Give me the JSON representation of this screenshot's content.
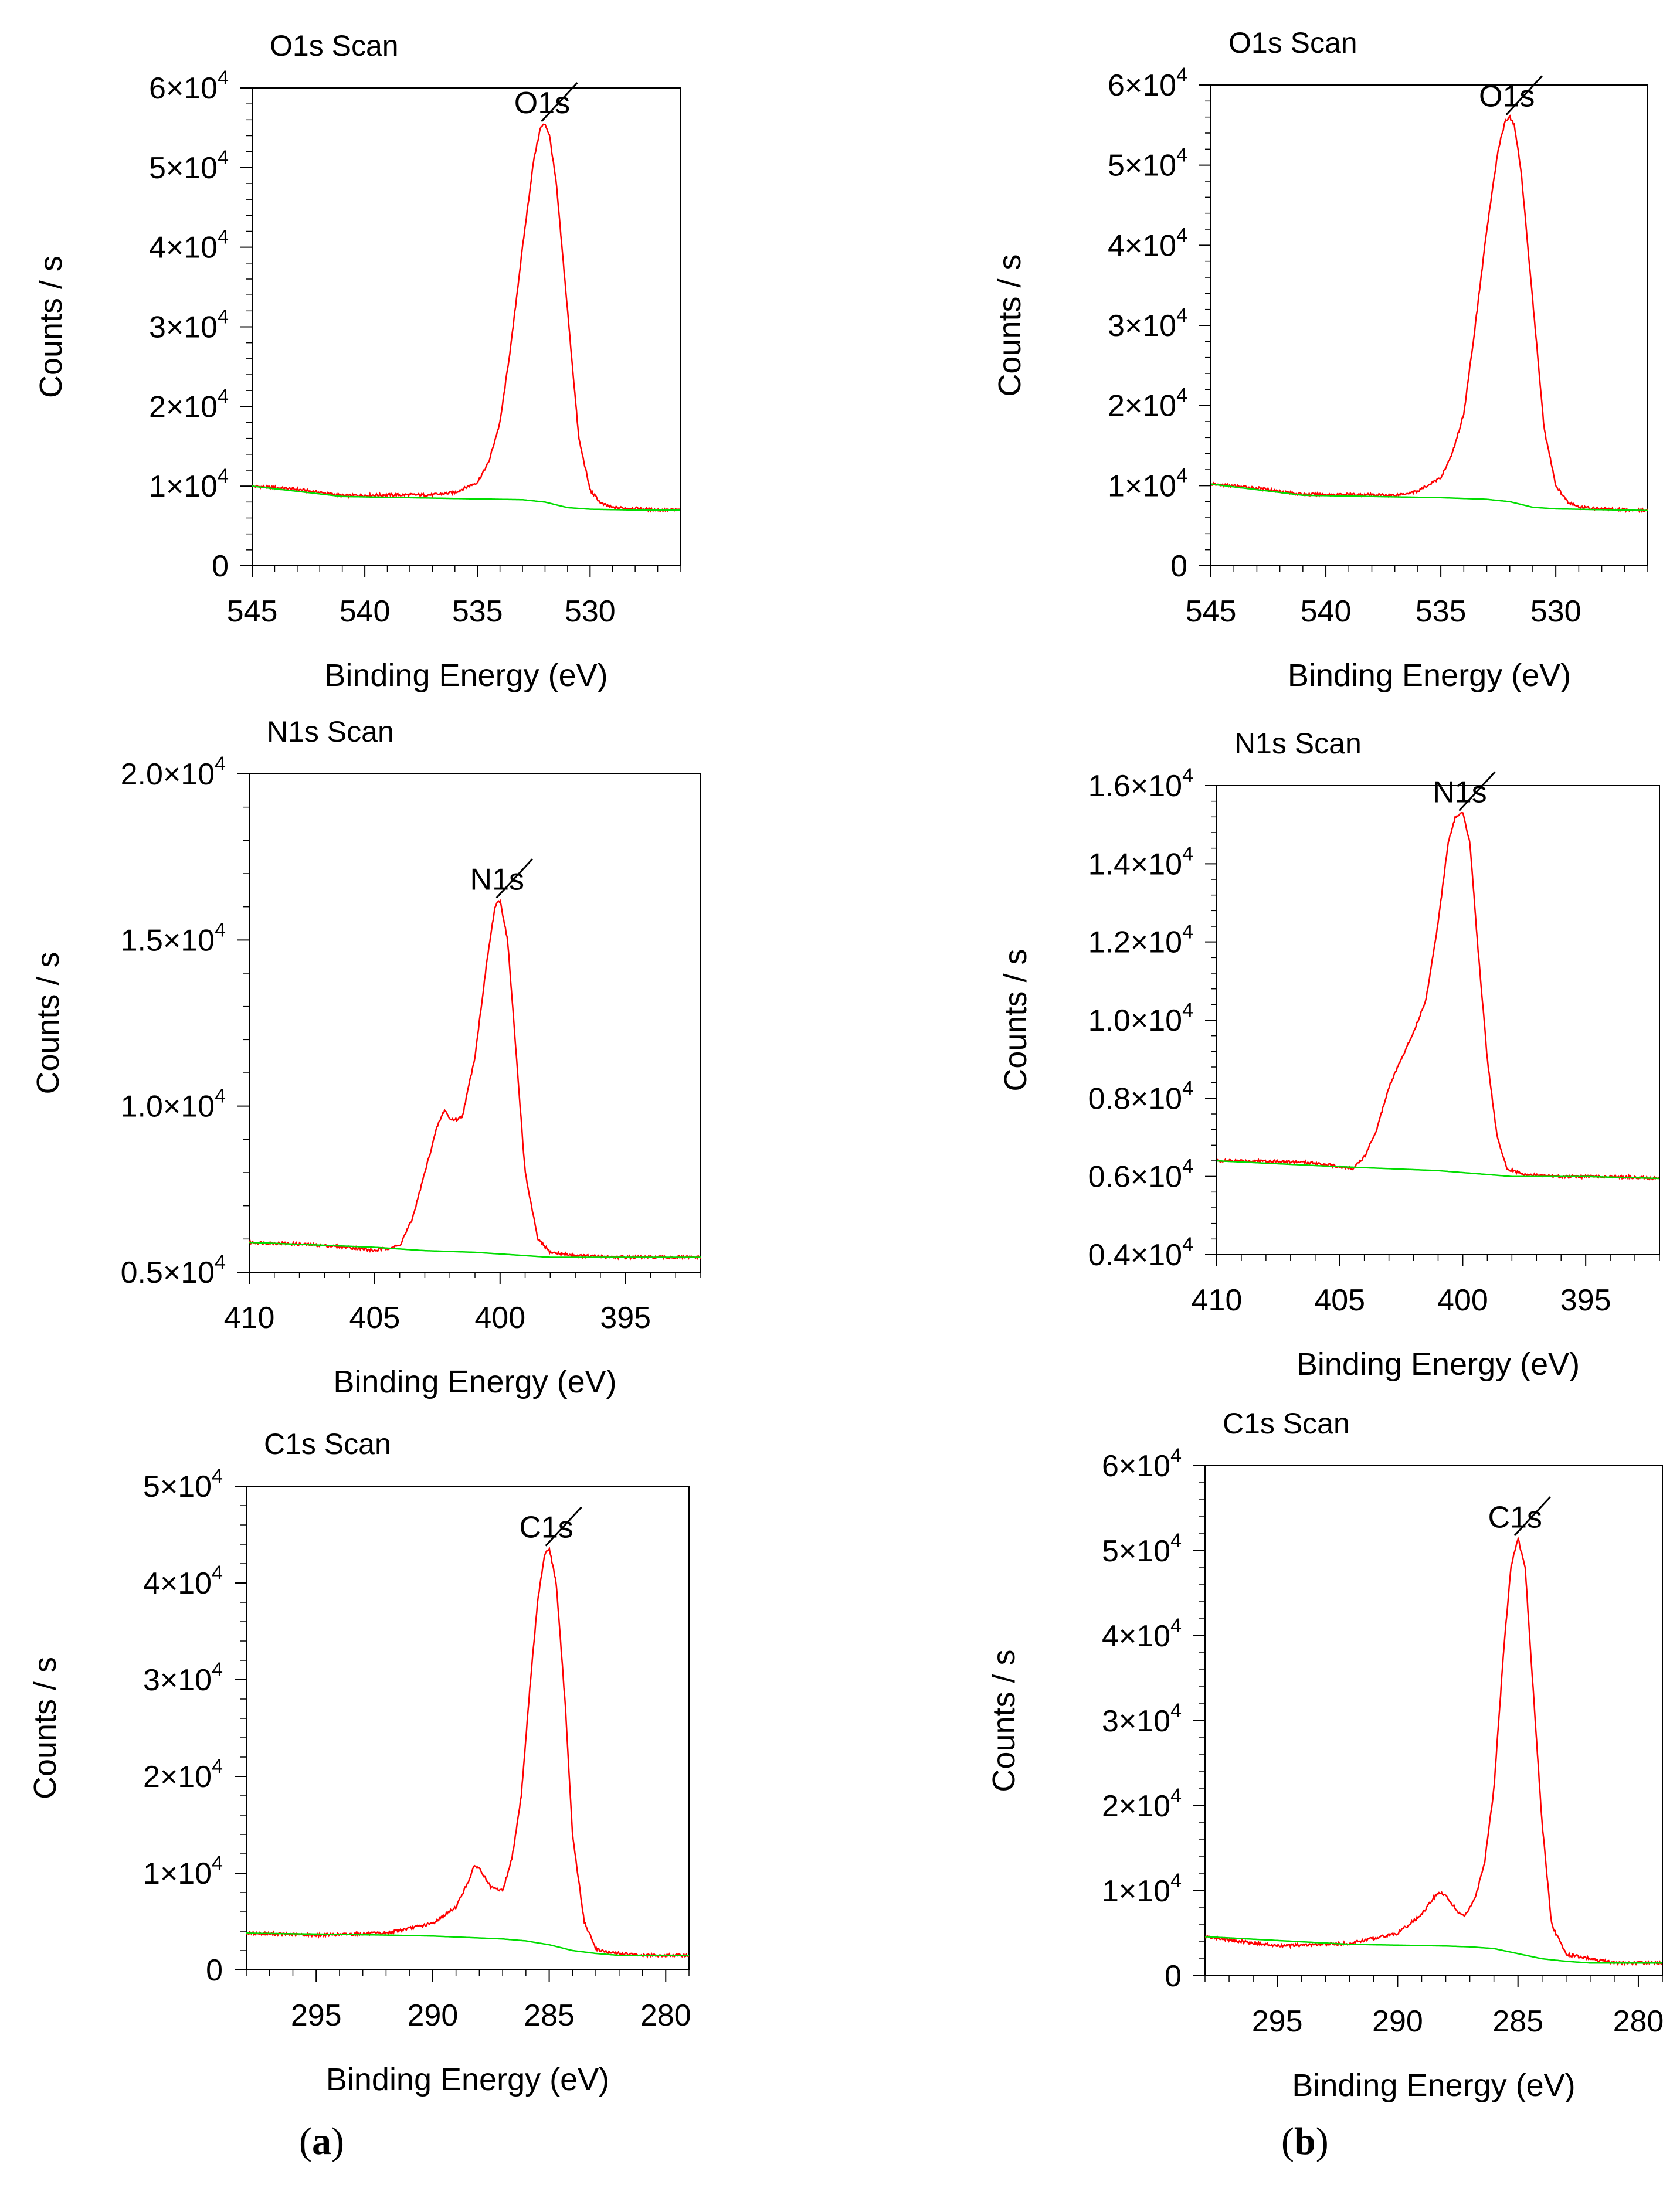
{
  "colors": {
    "spectrum": "#ff0000",
    "background_line": "#00dd00",
    "axis": "#000000"
  },
  "panel_labels": {
    "a": "a",
    "b": "b"
  },
  "chart_data": [
    {
      "type": "line",
      "id": "a-o1s",
      "panel": "a",
      "title": "O1s Scan",
      "xlabel": "Binding Energy (eV)",
      "ylabel": "Counts / s",
      "xlim": [
        545,
        526
      ],
      "ylim": [
        0,
        60000
      ],
      "xticks": [
        545,
        540,
        535,
        530
      ],
      "yticks": [
        {
          "v": 0,
          "m": "0",
          "e": ""
        },
        {
          "v": 10000,
          "m": "1×10",
          "e": "4"
        },
        {
          "v": 20000,
          "m": "2×10",
          "e": "4"
        },
        {
          "v": 30000,
          "m": "3×10",
          "e": "4"
        },
        {
          "v": 40000,
          "m": "4×10",
          "e": "4"
        },
        {
          "v": 50000,
          "m": "5×10",
          "e": "4"
        },
        {
          "v": 60000,
          "m": "6×10",
          "e": "4"
        }
      ],
      "peak_label": "O1s",
      "peak_x": 532.0,
      "series": [
        {
          "name": "spectrum",
          "x": [
            545,
            543,
            541,
            539,
            537,
            536,
            535,
            534.5,
            534,
            533.5,
            533,
            532.5,
            532.2,
            532,
            531.8,
            531.5,
            531,
            530.5,
            530,
            529.5,
            529,
            528,
            527,
            526
          ],
          "y": [
            10000,
            9600,
            8800,
            8900,
            8900,
            9200,
            10500,
            13000,
            18000,
            28000,
            40000,
            51000,
            55000,
            55500,
            54000,
            48000,
            32000,
            16000,
            9500,
            7800,
            7300,
            7200,
            7000,
            7000
          ]
        },
        {
          "name": "background",
          "x": [
            545,
            541,
            537,
            535,
            533,
            532,
            531,
            530,
            528,
            526
          ],
          "y": [
            10000,
            8700,
            8500,
            8400,
            8300,
            8000,
            7300,
            7100,
            7000,
            7000
          ]
        }
      ]
    },
    {
      "type": "line",
      "id": "a-n1s",
      "panel": "a",
      "title": "N1s Scan",
      "xlabel": "Binding Energy (eV)",
      "ylabel": "Counts / s",
      "xlim": [
        410,
        392
      ],
      "ylim": [
        5000,
        20000
      ],
      "xticks": [
        410,
        405,
        400,
        395
      ],
      "yticks": [
        {
          "v": 5000,
          "m": "0.5×10",
          "e": "4"
        },
        {
          "v": 10000,
          "m": "1.0×10",
          "e": "4"
        },
        {
          "v": 15000,
          "m": "1.5×10",
          "e": "4"
        },
        {
          "v": 20000,
          "m": "2.0×10",
          "e": "4"
        }
      ],
      "peak_label": "N1s",
      "peak_x": 400.0,
      "series": [
        {
          "name": "spectrum",
          "x": [
            410,
            408,
            406,
            405,
            404,
            403.5,
            403,
            402.5,
            402.2,
            402,
            401.7,
            401.5,
            401,
            400.5,
            400.2,
            400,
            399.7,
            399.3,
            399,
            398.5,
            398,
            397,
            395,
            392
          ],
          "y": [
            5900,
            5850,
            5750,
            5650,
            5800,
            6600,
            8000,
            9400,
            9900,
            9600,
            9600,
            9700,
            11500,
            14500,
            16000,
            16200,
            15000,
            11000,
            8000,
            6000,
            5600,
            5500,
            5450,
            5450
          ]
        },
        {
          "name": "background",
          "x": [
            410,
            405,
            403,
            401,
            399,
            398,
            395,
            392
          ],
          "y": [
            5900,
            5750,
            5650,
            5600,
            5500,
            5450,
            5450,
            5450
          ]
        }
      ]
    },
    {
      "type": "line",
      "id": "a-c1s",
      "panel": "a",
      "title": "C1s Scan",
      "xlabel": "Binding Energy (eV)",
      "ylabel": "Counts / s",
      "xlim": [
        298,
        279
      ],
      "ylim": [
        0,
        50000
      ],
      "xticks": [
        295,
        290,
        285,
        280
      ],
      "yticks": [
        {
          "v": 0,
          "m": "0",
          "e": ""
        },
        {
          "v": 10000,
          "m": "1×10",
          "e": "4"
        },
        {
          "v": 20000,
          "m": "2×10",
          "e": "4"
        },
        {
          "v": 30000,
          "m": "3×10",
          "e": "4"
        },
        {
          "v": 40000,
          "m": "4×10",
          "e": "4"
        },
        {
          "v": 50000,
          "m": "5×10",
          "e": "4"
        }
      ],
      "peak_label": "C1s",
      "peak_x": 285.0,
      "series": [
        {
          "name": "spectrum",
          "x": [
            298,
            295,
            292,
            290,
            289,
            288.5,
            288.2,
            288,
            287.5,
            287,
            286.6,
            286.2,
            285.8,
            285.5,
            285.2,
            285,
            284.7,
            284.3,
            284,
            283.5,
            283,
            282.5,
            281,
            279
          ],
          "y": [
            3800,
            3600,
            3800,
            4800,
            6500,
            9000,
            10800,
            10500,
            8500,
            8200,
            11500,
            18000,
            30000,
            38000,
            43000,
            43600,
            40000,
            27000,
            14000,
            5000,
            2200,
            1800,
            1500,
            1500
          ]
        },
        {
          "name": "background",
          "x": [
            298,
            292,
            290,
            288,
            287,
            286,
            285,
            284,
            283,
            282,
            279
          ],
          "y": [
            3800,
            3600,
            3500,
            3300,
            3200,
            3000,
            2600,
            2000,
            1700,
            1500,
            1500
          ]
        }
      ]
    },
    {
      "type": "line",
      "id": "b-o1s",
      "panel": "b",
      "title": "O1s Scan",
      "xlabel": "Binding Energy (eV)",
      "ylabel": "Counts / s",
      "xlim": [
        545,
        526
      ],
      "ylim": [
        0,
        60000
      ],
      "xticks": [
        545,
        540,
        535,
        530
      ],
      "yticks": [
        {
          "v": 0,
          "m": "0",
          "e": ""
        },
        {
          "v": 10000,
          "m": "1×10",
          "e": "4"
        },
        {
          "v": 20000,
          "m": "2×10",
          "e": "4"
        },
        {
          "v": 30000,
          "m": "3×10",
          "e": "4"
        },
        {
          "v": 40000,
          "m": "4×10",
          "e": "4"
        },
        {
          "v": 50000,
          "m": "5×10",
          "e": "4"
        },
        {
          "v": 60000,
          "m": "6×10",
          "e": "4"
        }
      ],
      "peak_label": "O1s",
      "peak_x": 532.0,
      "series": [
        {
          "name": "spectrum",
          "x": [
            545,
            543,
            541,
            539,
            537,
            536,
            535,
            534.5,
            534,
            533.5,
            533,
            532.5,
            532.2,
            532,
            531.8,
            531.5,
            531,
            530.5,
            530,
            529.5,
            529,
            528,
            527,
            526
          ],
          "y": [
            10200,
            9700,
            8900,
            8900,
            8800,
            9300,
            11000,
            14000,
            19000,
            30000,
            42000,
            52000,
            55500,
            56000,
            55000,
            49000,
            33000,
            17000,
            10000,
            8000,
            7300,
            7100,
            7000,
            6900
          ]
        },
        {
          "name": "background",
          "x": [
            545,
            541,
            537,
            535,
            533,
            532,
            531,
            530,
            528,
            526
          ],
          "y": [
            10200,
            8800,
            8600,
            8500,
            8300,
            8000,
            7300,
            7100,
            7000,
            6900
          ]
        }
      ]
    },
    {
      "type": "line",
      "id": "b-n1s",
      "panel": "b",
      "title": "N1s Scan",
      "xlabel": "Binding Energy (eV)",
      "ylabel": "Counts / s",
      "xlim": [
        410,
        392
      ],
      "ylim": [
        4000,
        16000
      ],
      "xticks": [
        410,
        405,
        400,
        395
      ],
      "yticks": [
        {
          "v": 4000,
          "m": "0.4×10",
          "e": "4"
        },
        {
          "v": 6000,
          "m": "0.6×10",
          "e": "4"
        },
        {
          "v": 8000,
          "m": "0.8×10",
          "e": "4"
        },
        {
          "v": 10000,
          "m": "1.0×10",
          "e": "4"
        },
        {
          "v": 12000,
          "m": "1.2×10",
          "e": "4"
        },
        {
          "v": 14000,
          "m": "1.4×10",
          "e": "4"
        },
        {
          "v": 16000,
          "m": "1.6×10",
          "e": "4"
        }
      ],
      "peak_label": "N1s",
      "peak_x": 400.0,
      "series": [
        {
          "name": "spectrum",
          "x": [
            410,
            408,
            406,
            404.5,
            404,
            403.5,
            403,
            402.5,
            402,
            401.5,
            401,
            400.6,
            400.3,
            400,
            399.7,
            399.4,
            399,
            398.6,
            398.2,
            397.5,
            396,
            394,
            392
          ],
          "y": [
            6400,
            6400,
            6350,
            6200,
            6500,
            7200,
            8300,
            9000,
            9700,
            10500,
            12500,
            14500,
            15200,
            15300,
            14500,
            12000,
            9000,
            7000,
            6200,
            6050,
            6000,
            6000,
            5950
          ]
        },
        {
          "name": "background",
          "x": [
            410,
            405,
            403,
            401,
            400,
            399,
            398,
            395,
            392
          ],
          "y": [
            6400,
            6250,
            6200,
            6150,
            6100,
            6050,
            6000,
            6000,
            5950
          ]
        }
      ]
    },
    {
      "type": "line",
      "id": "b-c1s",
      "panel": "b",
      "title": "C1s Scan",
      "xlabel": "Binding Energy (eV)",
      "ylabel": "Counts / s",
      "xlim": [
        298,
        279
      ],
      "ylim": [
        0,
        60000
      ],
      "xticks": [
        295,
        290,
        285,
        280
      ],
      "yticks": [
        {
          "v": 0,
          "m": "0",
          "e": ""
        },
        {
          "v": 10000,
          "m": "1×10",
          "e": "4"
        },
        {
          "v": 20000,
          "m": "2×10",
          "e": "4"
        },
        {
          "v": 30000,
          "m": "3×10",
          "e": "4"
        },
        {
          "v": 40000,
          "m": "4×10",
          "e": "4"
        },
        {
          "v": 50000,
          "m": "5×10",
          "e": "4"
        },
        {
          "v": 60000,
          "m": "6×10",
          "e": "4"
        }
      ],
      "peak_label": "C1s",
      "peak_x": 285.0,
      "series": [
        {
          "name": "spectrum",
          "x": [
            298,
            295,
            292,
            290,
            289,
            288.5,
            288.2,
            288,
            287.5,
            287.2,
            286.8,
            286.4,
            286,
            285.6,
            285.3,
            285,
            284.7,
            284.4,
            284,
            283.6,
            283,
            282,
            281,
            279
          ],
          "y": [
            4600,
            3500,
            3800,
            5000,
            7200,
            9200,
            9800,
            9500,
            7500,
            7000,
            9000,
            13000,
            22000,
            38000,
            48000,
            51500,
            48000,
            35000,
            18000,
            6000,
            2500,
            2000,
            1500,
            1500
          ]
        },
        {
          "name": "background",
          "x": [
            298,
            292,
            290,
            288,
            287,
            286,
            285,
            284,
            283,
            282,
            279
          ],
          "y": [
            4600,
            3700,
            3600,
            3500,
            3400,
            3200,
            2600,
            2000,
            1700,
            1500,
            1500
          ]
        }
      ]
    }
  ]
}
